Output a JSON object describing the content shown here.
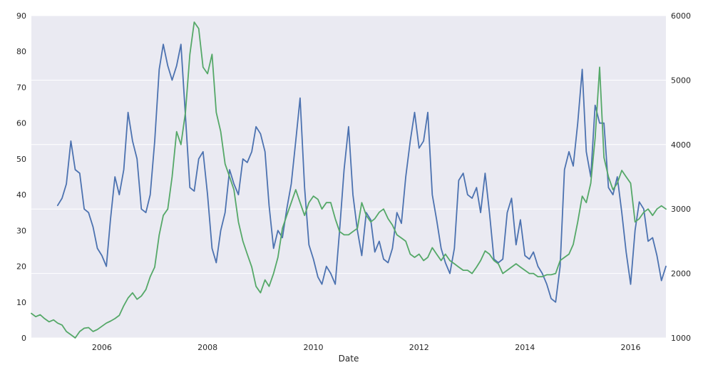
{
  "chart_data": {
    "type": "line",
    "xlabel": "Date",
    "x_range": [
      "2004-09-01",
      "2016-09-01"
    ],
    "x_ticks": [
      "2006",
      "2008",
      "2010",
      "2012",
      "2014",
      "2016"
    ],
    "y_left": {
      "range": [
        0,
        90
      ],
      "ticks": [
        "0",
        "10",
        "20",
        "30",
        "40",
        "50",
        "60",
        "70",
        "80",
        "90"
      ]
    },
    "y_right": {
      "range": [
        1000,
        6000
      ],
      "ticks": [
        "1000",
        "2000",
        "3000",
        "4000",
        "5000",
        "6000"
      ]
    },
    "grid": "horizontal",
    "background": "#eaeaf2",
    "series": [
      {
        "axis": "left",
        "color": "#4c72b0",
        "points": [
          [
            "2005-03-01",
            37
          ],
          [
            "2005-04-01",
            39
          ],
          [
            "2005-05-01",
            43
          ],
          [
            "2005-06-01",
            55
          ],
          [
            "2005-07-01",
            47
          ],
          [
            "2005-08-01",
            46
          ],
          [
            "2005-09-01",
            36
          ],
          [
            "2005-10-01",
            35
          ],
          [
            "2005-11-01",
            31
          ],
          [
            "2005-12-01",
            25
          ],
          [
            "2006-01-01",
            23
          ],
          [
            "2006-02-01",
            20
          ],
          [
            "2006-03-01",
            33
          ],
          [
            "2006-04-01",
            45
          ],
          [
            "2006-05-01",
            40
          ],
          [
            "2006-06-01",
            47
          ],
          [
            "2006-07-01",
            63
          ],
          [
            "2006-08-01",
            55
          ],
          [
            "2006-09-01",
            50
          ],
          [
            "2006-10-01",
            36
          ],
          [
            "2006-11-01",
            35
          ],
          [
            "2006-12-01",
            40
          ],
          [
            "2007-01-01",
            55
          ],
          [
            "2007-02-01",
            75
          ],
          [
            "2007-03-01",
            82
          ],
          [
            "2007-04-01",
            76
          ],
          [
            "2007-05-01",
            72
          ],
          [
            "2007-06-01",
            76
          ],
          [
            "2007-07-01",
            82
          ],
          [
            "2007-08-01",
            62
          ],
          [
            "2007-09-01",
            42
          ],
          [
            "2007-10-01",
            41
          ],
          [
            "2007-11-01",
            50
          ],
          [
            "2007-12-01",
            52
          ],
          [
            "2008-01-01",
            40
          ],
          [
            "2008-02-01",
            25
          ],
          [
            "2008-03-01",
            21
          ],
          [
            "2008-04-01",
            30
          ],
          [
            "2008-05-01",
            35
          ],
          [
            "2008-06-01",
            47
          ],
          [
            "2008-07-01",
            43
          ],
          [
            "2008-08-01",
            40
          ],
          [
            "2008-09-01",
            50
          ],
          [
            "2008-10-01",
            49
          ],
          [
            "2008-11-01",
            52
          ],
          [
            "2008-12-01",
            59
          ],
          [
            "2009-01-01",
            57
          ],
          [
            "2009-02-01",
            52
          ],
          [
            "2009-03-01",
            37
          ],
          [
            "2009-04-01",
            25
          ],
          [
            "2009-05-01",
            30
          ],
          [
            "2009-06-01",
            28
          ],
          [
            "2009-07-01",
            36
          ],
          [
            "2009-08-01",
            43
          ],
          [
            "2009-09-01",
            55
          ],
          [
            "2009-10-01",
            67
          ],
          [
            "2009-11-01",
            42
          ],
          [
            "2009-12-01",
            26
          ],
          [
            "2010-01-01",
            22
          ],
          [
            "2010-02-01",
            17
          ],
          [
            "2010-03-01",
            15
          ],
          [
            "2010-04-01",
            20
          ],
          [
            "2010-05-01",
            18
          ],
          [
            "2010-06-01",
            15
          ],
          [
            "2010-07-01",
            30
          ],
          [
            "2010-08-01",
            47
          ],
          [
            "2010-09-01",
            59
          ],
          [
            "2010-10-01",
            40
          ],
          [
            "2010-11-01",
            30
          ],
          [
            "2010-12-01",
            23
          ],
          [
            "2011-01-01",
            35
          ],
          [
            "2011-02-01",
            33
          ],
          [
            "2011-03-01",
            24
          ],
          [
            "2011-04-01",
            27
          ],
          [
            "2011-05-01",
            22
          ],
          [
            "2011-06-01",
            21
          ],
          [
            "2011-07-01",
            25
          ],
          [
            "2011-08-01",
            35
          ],
          [
            "2011-09-01",
            32
          ],
          [
            "2011-10-01",
            45
          ],
          [
            "2011-11-01",
            55
          ],
          [
            "2011-12-01",
            63
          ],
          [
            "2012-01-01",
            53
          ],
          [
            "2012-02-01",
            55
          ],
          [
            "2012-03-01",
            63
          ],
          [
            "2012-04-01",
            40
          ],
          [
            "2012-05-01",
            33
          ],
          [
            "2012-06-01",
            25
          ],
          [
            "2012-07-01",
            21
          ],
          [
            "2012-08-01",
            18
          ],
          [
            "2012-09-01",
            25
          ],
          [
            "2012-10-01",
            44
          ],
          [
            "2012-11-01",
            46
          ],
          [
            "2012-12-01",
            40
          ],
          [
            "2013-01-01",
            39
          ],
          [
            "2013-02-01",
            42
          ],
          [
            "2013-03-01",
            35
          ],
          [
            "2013-04-01",
            46
          ],
          [
            "2013-05-01",
            35
          ],
          [
            "2013-06-01",
            22
          ],
          [
            "2013-07-01",
            21
          ],
          [
            "2013-08-01",
            22
          ],
          [
            "2013-09-01",
            35
          ],
          [
            "2013-10-01",
            39
          ],
          [
            "2013-11-01",
            26
          ],
          [
            "2013-12-01",
            33
          ],
          [
            "2014-01-01",
            23
          ],
          [
            "2014-02-01",
            22
          ],
          [
            "2014-03-01",
            24
          ],
          [
            "2014-04-01",
            20
          ],
          [
            "2014-05-01",
            18
          ],
          [
            "2014-06-01",
            15
          ],
          [
            "2014-07-01",
            11
          ],
          [
            "2014-08-01",
            10
          ],
          [
            "2014-09-01",
            20
          ],
          [
            "2014-10-01",
            47
          ],
          [
            "2014-11-01",
            52
          ],
          [
            "2014-12-01",
            48
          ],
          [
            "2015-01-01",
            60
          ],
          [
            "2015-02-01",
            75
          ],
          [
            "2015-03-01",
            52
          ],
          [
            "2015-04-01",
            45
          ],
          [
            "2015-05-01",
            65
          ],
          [
            "2015-06-01",
            60
          ],
          [
            "2015-07-01",
            60
          ],
          [
            "2015-08-01",
            42
          ],
          [
            "2015-09-01",
            40
          ],
          [
            "2015-10-01",
            45
          ],
          [
            "2015-11-01",
            35
          ],
          [
            "2015-12-01",
            24
          ],
          [
            "2016-01-01",
            15
          ],
          [
            "2016-02-01",
            30
          ],
          [
            "2016-03-01",
            38
          ],
          [
            "2016-04-01",
            36
          ],
          [
            "2016-05-01",
            27
          ],
          [
            "2016-06-01",
            28
          ],
          [
            "2016-07-01",
            23
          ],
          [
            "2016-08-01",
            16
          ],
          [
            "2016-09-01",
            20
          ]
        ]
      },
      {
        "axis": "right",
        "color": "#55a868",
        "points": [
          [
            "2004-09-01",
            1380
          ],
          [
            "2004-10-01",
            1330
          ],
          [
            "2004-11-01",
            1360
          ],
          [
            "2004-12-01",
            1300
          ],
          [
            "2005-01-01",
            1250
          ],
          [
            "2005-02-01",
            1280
          ],
          [
            "2005-03-01",
            1230
          ],
          [
            "2005-04-01",
            1200
          ],
          [
            "2005-05-01",
            1100
          ],
          [
            "2005-06-01",
            1050
          ],
          [
            "2005-07-01",
            1000
          ],
          [
            "2005-08-01",
            1100
          ],
          [
            "2005-09-01",
            1150
          ],
          [
            "2005-10-01",
            1160
          ],
          [
            "2005-11-01",
            1100
          ],
          [
            "2005-12-01",
            1130
          ],
          [
            "2006-01-01",
            1180
          ],
          [
            "2006-02-01",
            1230
          ],
          [
            "2006-03-01",
            1260
          ],
          [
            "2006-04-01",
            1300
          ],
          [
            "2006-05-01",
            1350
          ],
          [
            "2006-06-01",
            1500
          ],
          [
            "2006-07-01",
            1620
          ],
          [
            "2006-08-01",
            1700
          ],
          [
            "2006-09-01",
            1600
          ],
          [
            "2006-10-01",
            1650
          ],
          [
            "2006-11-01",
            1750
          ],
          [
            "2006-12-01",
            1950
          ],
          [
            "2007-01-01",
            2100
          ],
          [
            "2007-02-01",
            2600
          ],
          [
            "2007-03-01",
            2900
          ],
          [
            "2007-04-01",
            3000
          ],
          [
            "2007-05-01",
            3500
          ],
          [
            "2007-06-01",
            4200
          ],
          [
            "2007-07-01",
            4000
          ],
          [
            "2007-08-01",
            4500
          ],
          [
            "2007-09-01",
            5400
          ],
          [
            "2007-10-01",
            5900
          ],
          [
            "2007-11-01",
            5800
          ],
          [
            "2007-12-01",
            5200
          ],
          [
            "2008-01-01",
            5100
          ],
          [
            "2008-02-01",
            5400
          ],
          [
            "2008-03-01",
            4500
          ],
          [
            "2008-04-01",
            4200
          ],
          [
            "2008-05-01",
            3700
          ],
          [
            "2008-06-01",
            3500
          ],
          [
            "2008-07-01",
            3300
          ],
          [
            "2008-08-01",
            2800
          ],
          [
            "2008-09-01",
            2500
          ],
          [
            "2008-10-01",
            2300
          ],
          [
            "2008-11-01",
            2100
          ],
          [
            "2008-12-01",
            1800
          ],
          [
            "2009-01-01",
            1700
          ],
          [
            "2009-02-01",
            1900
          ],
          [
            "2009-03-01",
            1800
          ],
          [
            "2009-04-01",
            2000
          ],
          [
            "2009-05-01",
            2250
          ],
          [
            "2009-06-01",
            2700
          ],
          [
            "2009-07-01",
            2900
          ],
          [
            "2009-08-01",
            3100
          ],
          [
            "2009-09-01",
            3300
          ],
          [
            "2009-10-01",
            3100
          ],
          [
            "2009-11-01",
            2900
          ],
          [
            "2009-12-01",
            3100
          ],
          [
            "2010-01-01",
            3200
          ],
          [
            "2010-02-01",
            3150
          ],
          [
            "2010-03-01",
            3000
          ],
          [
            "2010-04-01",
            3100
          ],
          [
            "2010-05-01",
            3100
          ],
          [
            "2010-06-01",
            2850
          ],
          [
            "2010-07-01",
            2650
          ],
          [
            "2010-08-01",
            2600
          ],
          [
            "2010-09-01",
            2600
          ],
          [
            "2010-10-01",
            2650
          ],
          [
            "2010-11-01",
            2700
          ],
          [
            "2010-12-01",
            3100
          ],
          [
            "2011-01-01",
            2900
          ],
          [
            "2011-02-01",
            2800
          ],
          [
            "2011-03-01",
            2850
          ],
          [
            "2011-04-01",
            2950
          ],
          [
            "2011-05-01",
            3000
          ],
          [
            "2011-06-01",
            2850
          ],
          [
            "2011-07-01",
            2750
          ],
          [
            "2011-08-01",
            2600
          ],
          [
            "2011-09-01",
            2550
          ],
          [
            "2011-10-01",
            2500
          ],
          [
            "2011-11-01",
            2300
          ],
          [
            "2011-12-01",
            2250
          ],
          [
            "2012-01-01",
            2300
          ],
          [
            "2012-02-01",
            2200
          ],
          [
            "2012-03-01",
            2250
          ],
          [
            "2012-04-01",
            2400
          ],
          [
            "2012-05-01",
            2300
          ],
          [
            "2012-06-01",
            2200
          ],
          [
            "2012-07-01",
            2300
          ],
          [
            "2012-08-01",
            2200
          ],
          [
            "2012-09-01",
            2150
          ],
          [
            "2012-10-01",
            2100
          ],
          [
            "2012-11-01",
            2050
          ],
          [
            "2012-12-01",
            2050
          ],
          [
            "2013-01-01",
            2000
          ],
          [
            "2013-02-01",
            2100
          ],
          [
            "2013-03-01",
            2200
          ],
          [
            "2013-04-01",
            2350
          ],
          [
            "2013-05-01",
            2300
          ],
          [
            "2013-06-01",
            2200
          ],
          [
            "2013-07-01",
            2150
          ],
          [
            "2013-08-01",
            2000
          ],
          [
            "2013-09-01",
            2050
          ],
          [
            "2013-10-01",
            2100
          ],
          [
            "2013-11-01",
            2150
          ],
          [
            "2013-12-01",
            2100
          ],
          [
            "2014-01-01",
            2050
          ],
          [
            "2014-02-01",
            2000
          ],
          [
            "2014-03-01",
            2000
          ],
          [
            "2014-04-01",
            1950
          ],
          [
            "2014-05-01",
            1950
          ],
          [
            "2014-06-01",
            1980
          ],
          [
            "2014-07-01",
            1980
          ],
          [
            "2014-08-01",
            2000
          ],
          [
            "2014-09-01",
            2200
          ],
          [
            "2014-10-01",
            2250
          ],
          [
            "2014-11-01",
            2300
          ],
          [
            "2014-12-01",
            2450
          ],
          [
            "2015-01-01",
            2800
          ],
          [
            "2015-02-01",
            3200
          ],
          [
            "2015-03-01",
            3100
          ],
          [
            "2015-04-01",
            3400
          ],
          [
            "2015-05-01",
            4100
          ],
          [
            "2015-06-01",
            5200
          ],
          [
            "2015-07-01",
            3800
          ],
          [
            "2015-08-01",
            3500
          ],
          [
            "2015-09-01",
            3300
          ],
          [
            "2015-10-01",
            3400
          ],
          [
            "2015-11-01",
            3600
          ],
          [
            "2015-12-01",
            3500
          ],
          [
            "2016-01-01",
            3400
          ],
          [
            "2016-02-01",
            2800
          ],
          [
            "2016-03-01",
            2850
          ],
          [
            "2016-04-01",
            2950
          ],
          [
            "2016-05-01",
            3000
          ],
          [
            "2016-06-01",
            2900
          ],
          [
            "2016-07-01",
            3000
          ],
          [
            "2016-08-01",
            3050
          ],
          [
            "2016-09-01",
            3000
          ]
        ]
      }
    ]
  }
}
